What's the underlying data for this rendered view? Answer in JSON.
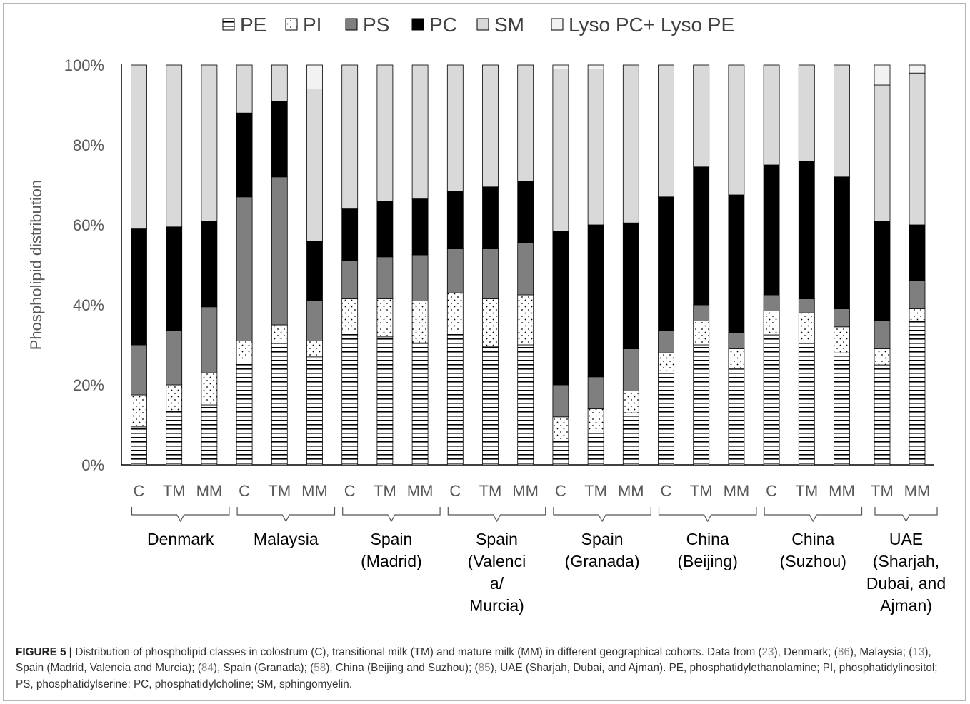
{
  "chart_data": {
    "type": "bar",
    "stacked": true,
    "normalized": true,
    "ylabel": "Phospholipid distribution",
    "xlabel": "",
    "ylim": [
      0,
      100
    ],
    "yticks": [
      "0%",
      "20%",
      "40%",
      "60%",
      "80%",
      "100%"
    ],
    "grid": false,
    "legend_position": "top",
    "categories": [
      "C",
      "TM",
      "MM",
      "C",
      "TM",
      "MM",
      "C",
      "TM",
      "MM",
      "C",
      "TM",
      "MM",
      "C",
      "TM",
      "MM",
      "C",
      "TM",
      "MM",
      "C",
      "TM",
      "MM",
      "TM",
      "MM"
    ],
    "groups": [
      {
        "label_lines": [
          "Denmark"
        ],
        "start": 0,
        "end": 2
      },
      {
        "label_lines": [
          "Malaysia"
        ],
        "start": 3,
        "end": 5
      },
      {
        "label_lines": [
          "Spain",
          "(Madrid)"
        ],
        "start": 6,
        "end": 8
      },
      {
        "label_lines": [
          "Spain",
          "(Valenci",
          "a/",
          "Murcia)"
        ],
        "start": 9,
        "end": 11
      },
      {
        "label_lines": [
          "Spain",
          "(Granada)"
        ],
        "start": 12,
        "end": 14
      },
      {
        "label_lines": [
          "China",
          "(Beijing)"
        ],
        "start": 15,
        "end": 17
      },
      {
        "label_lines": [
          "China",
          "(Suzhou)"
        ],
        "start": 18,
        "end": 20
      },
      {
        "label_lines": [
          "UAE",
          "(Sharjah,",
          "Dubai, and",
          "Ajman)"
        ],
        "start": 21,
        "end": 22
      }
    ],
    "series": [
      {
        "name": "PE",
        "pattern": "horizontal-lines",
        "values": [
          9.5,
          13.5,
          15,
          26,
          31,
          27,
          33.5,
          32,
          30.5,
          33.5,
          29.5,
          30,
          6,
          8.5,
          13,
          23.5,
          30,
          24,
          32.5,
          31,
          28,
          25,
          36
        ]
      },
      {
        "name": "PI",
        "pattern": "dots",
        "values": [
          8,
          6.5,
          8,
          5,
          4,
          4,
          8,
          9.5,
          10.5,
          9.5,
          12,
          12.5,
          6,
          5.5,
          5.5,
          4.5,
          6,
          5,
          6,
          7,
          6.5,
          4,
          3
        ]
      },
      {
        "name": "PS",
        "pattern": "dark-gray",
        "values": [
          12.5,
          13.5,
          16.5,
          36,
          37,
          10,
          9.5,
          10.5,
          11.5,
          11,
          12.5,
          13,
          8,
          8,
          10.5,
          5.5,
          4,
          4,
          4,
          3.5,
          4.5,
          7,
          7
        ]
      },
      {
        "name": "PC",
        "pattern": "black",
        "values": [
          29,
          26,
          21.5,
          21,
          19,
          15,
          13,
          14,
          14,
          14.5,
          15.5,
          15.5,
          38.5,
          38,
          31.5,
          33.5,
          34.5,
          34.5,
          32.5,
          34.5,
          33,
          25,
          14
        ]
      },
      {
        "name": "SM",
        "pattern": "light-gray",
        "values": [
          41,
          40.5,
          39,
          12,
          9,
          38,
          36,
          34,
          33.5,
          31.5,
          30.5,
          29,
          40.5,
          39,
          39.5,
          33,
          25.5,
          32.5,
          25,
          24,
          28,
          34,
          38
        ]
      },
      {
        "name": "Lyso PC+ Lyso PE",
        "pattern": "white",
        "values": [
          0,
          0,
          0,
          0,
          0,
          6,
          0,
          0,
          0,
          0,
          0,
          0,
          1,
          1,
          0,
          0,
          0,
          0,
          0,
          0,
          0,
          5,
          2
        ]
      }
    ]
  },
  "caption": {
    "figure_label": "FIGURE 5 |",
    "parts": [
      {
        "t": " Distribution of phospholipid classes in colostrum (C), transitional milk (TM) and mature milk (MM) in different geographical cohorts. Data from (",
        "c": false
      },
      {
        "t": "23",
        "c": true
      },
      {
        "t": "), Denmark; (",
        "c": false
      },
      {
        "t": "86",
        "c": true
      },
      {
        "t": "), Malaysia; (",
        "c": false
      },
      {
        "t": "13",
        "c": true
      },
      {
        "t": "), Spain (Madrid, Valencia and Murcia); (",
        "c": false
      },
      {
        "t": "84",
        "c": true
      },
      {
        "t": "), Spain (Granada); (",
        "c": false
      },
      {
        "t": "58",
        "c": true
      },
      {
        "t": "), China (Beijing and Suzhou); (",
        "c": false
      },
      {
        "t": "85",
        "c": true
      },
      {
        "t": "), UAE (Sharjah, Dubai, and Ajman). PE, phosphatidylethanolamine; PI, phosphatidylinositol; PS, phosphatidylserine; PC, phosphatidylcholine; SM, sphingomyelin.",
        "c": false
      }
    ]
  }
}
